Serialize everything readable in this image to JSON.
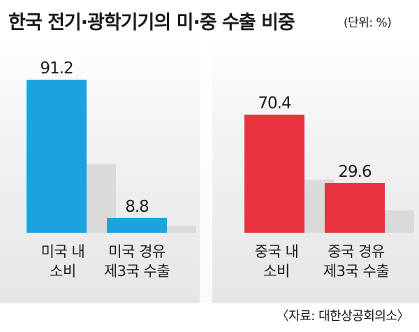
{
  "title": "한국 전기·광학기기의 미·중 수출 비중",
  "unit": "(단위: %)",
  "source": "〈자료: 대한상공회의소〉",
  "chart_data": [
    {
      "type": "bar",
      "categories": [
        "미국 내\n소비",
        "미국 경유\n제3국 수출"
      ],
      "values": [
        91.2,
        8.8
      ],
      "value_labels": [
        "91.2",
        "8.8"
      ],
      "color": "#1aa3de",
      "ylim": [
        0,
        100
      ]
    },
    {
      "type": "bar",
      "categories": [
        "중국 내\n소비",
        "중국 경유\n제3국 수출"
      ],
      "values": [
        70.4,
        29.6
      ],
      "value_labels": [
        "70.4",
        "29.6"
      ],
      "color": "#e8323f",
      "ylim": [
        0,
        100
      ]
    }
  ]
}
